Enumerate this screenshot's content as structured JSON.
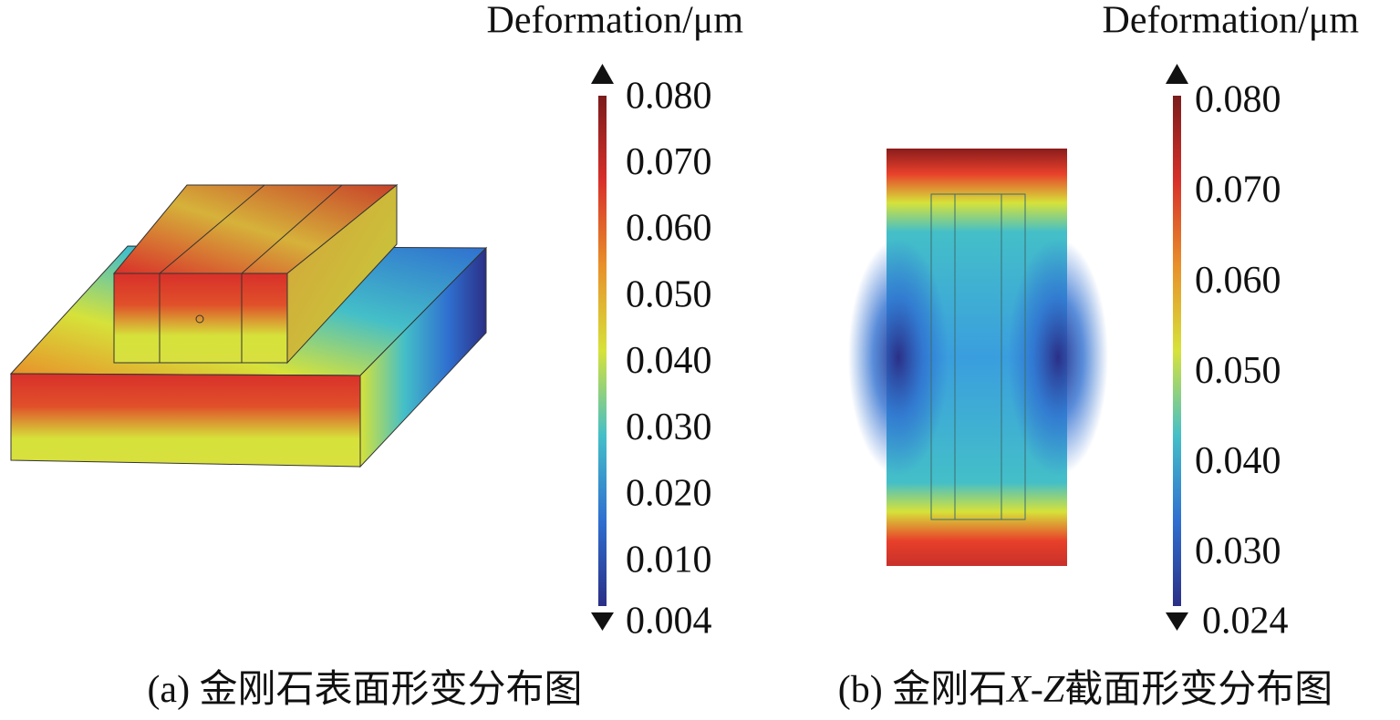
{
  "chart_data": [
    {
      "type": "colorbar",
      "title": "Deformation/μm",
      "caption": [
        "(a) 金刚石表面形变分布图"
      ],
      "colormap": [
        "#2b2f86",
        "#2f6fd0",
        "#44bfc8",
        "#d6e23a",
        "#e8902a",
        "#d8302a",
        "#7a1c1c"
      ],
      "ylim": [
        0.0035,
        0.0805
      ],
      "yticks": [
        {
          "value": 0.08,
          "label": "0.080"
        },
        {
          "value": 0.07,
          "label": "0.070"
        },
        {
          "value": 0.06,
          "label": "0.060"
        },
        {
          "value": 0.05,
          "label": "0.050"
        },
        {
          "value": 0.04,
          "label": "0.040"
        },
        {
          "value": 0.03,
          "label": "0.030"
        },
        {
          "value": 0.02,
          "label": "0.020"
        },
        {
          "value": 0.01,
          "label": "0.010"
        }
      ],
      "min": {
        "value": 0.004,
        "label": "0.004"
      }
    },
    {
      "type": "colorbar",
      "title": "Deformation/μm",
      "caption": [
        "(b) 金刚石",
        "X-Z",
        "截面形变分布图"
      ],
      "colormap": [
        "#2b2f86",
        "#2f6fd0",
        "#44bfc8",
        "#d6e23a",
        "#e8902a",
        "#d8302a",
        "#7a1c1c"
      ],
      "ylim": [
        0.0243,
        0.0808
      ],
      "yticks": [
        {
          "value": 0.08,
          "label": "0.080"
        },
        {
          "value": 0.07,
          "label": "0.070"
        },
        {
          "value": 0.06,
          "label": "0.060"
        },
        {
          "value": 0.05,
          "label": "0.050"
        },
        {
          "value": 0.04,
          "label": "0.040"
        },
        {
          "value": 0.03,
          "label": "0.030"
        }
      ],
      "min": {
        "value": 0.024,
        "label": "0.024"
      }
    }
  ]
}
